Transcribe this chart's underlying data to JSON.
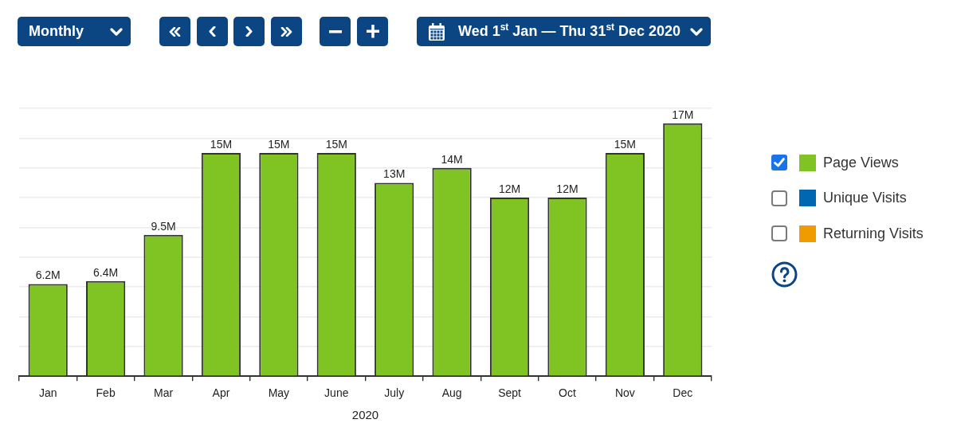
{
  "chart_data": {
    "type": "bar",
    "annotations": [
      "Monthly",
      "Wed 1$^{st}$ Jan — Thu 31$^{st}$ Dec 2020"
    ],
    "xlabel": "2020",
    "categories": [
      "Jan",
      "Feb",
      "Mar",
      "Apr",
      "May",
      "June",
      "July",
      "Aug",
      "Sept",
      "Oct",
      "Nov",
      "Dec"
    ],
    "series": [
      {
        "name": "Page Views",
        "color": "#80c423",
        "values": [
          6.2,
          6.4,
          9.5,
          15,
          15,
          15,
          13,
          14,
          12,
          12,
          15,
          17
        ],
        "value_labels": [
          "6.2M",
          "6.4M",
          "9.5M",
          "15M",
          "15M",
          "15M",
          "13M",
          "14M",
          "12M",
          "12M",
          "15M",
          "17M"
        ]
      },
      {
        "name": "Unique Visits",
        "color": "#0068b3",
        "values": [
          null,
          null,
          null,
          null,
          null,
          null,
          null,
          null,
          null,
          null,
          null,
          null
        ]
      },
      {
        "name": "Returning Visits",
        "color": "#f09c00",
        "values": [
          null,
          null,
          null,
          null,
          null,
          null,
          null,
          null,
          null,
          null,
          null,
          null
        ]
      }
    ],
    "ylim": [
      0,
      18
    ],
    "tick_labels": "x",
    "grid": "y",
    "legend": "right"
  }
}
